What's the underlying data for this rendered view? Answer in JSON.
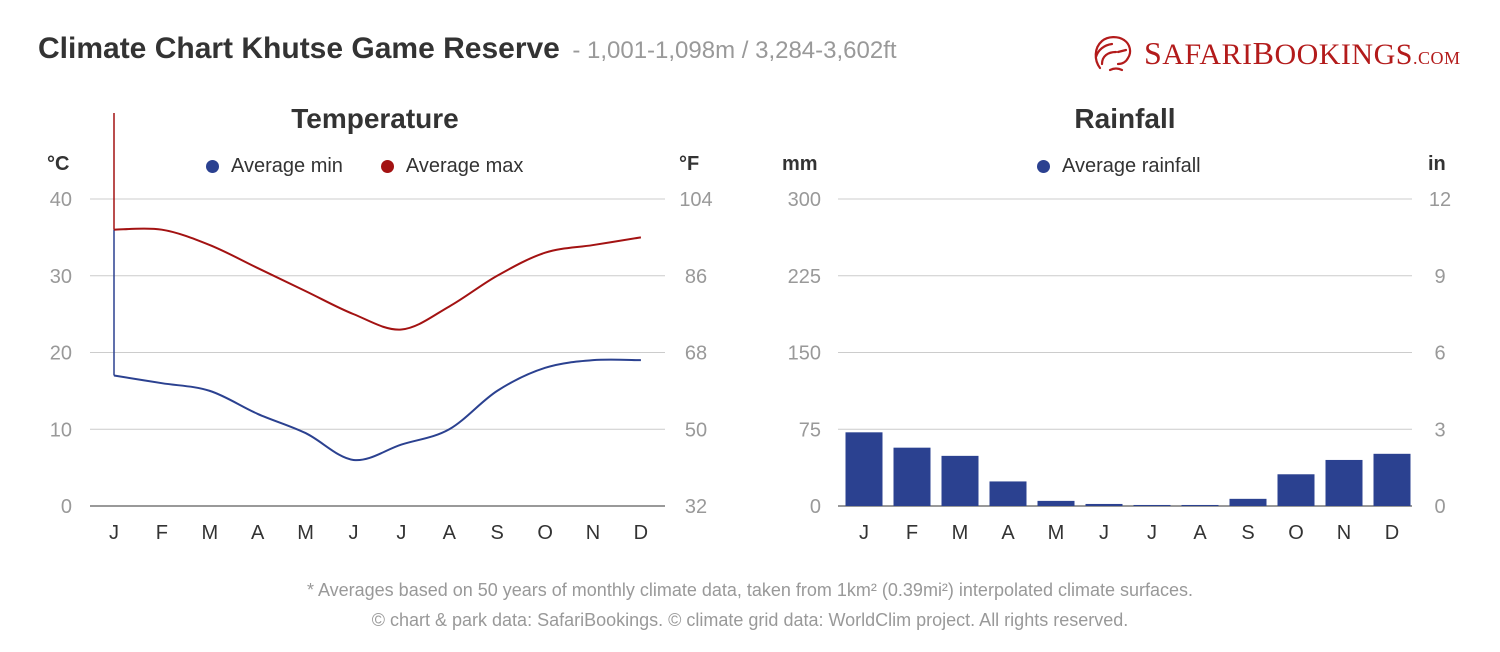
{
  "header": {
    "title": "Climate Chart Khutse Game Reserve",
    "subtitle": "- 1,001-1,098m / 3,284-3,602ft"
  },
  "logo": {
    "part1_big": "S",
    "part1": "AFARI",
    "part2_big": "B",
    "part2": "OOKINGS",
    "domain": ".COM"
  },
  "colors": {
    "min": "#2b4190",
    "max": "#a31212",
    "rain": "#2b4190",
    "grid": "#cccccc",
    "tick": "#999999"
  },
  "footer": {
    "line1": "* Averages based on 50 years of monthly climate data, taken from 1km² (0.39mi²) interpolated climate surfaces.",
    "line2": "© chart & park data: SafariBookings. © climate grid data: WorldClim project. All rights reserved."
  },
  "chart_data": [
    {
      "type": "line",
      "title": "Temperature",
      "ylabel": "°C",
      "ylabel_right": "°F",
      "categories": [
        "J",
        "F",
        "M",
        "A",
        "M",
        "J",
        "J",
        "A",
        "S",
        "O",
        "N",
        "D"
      ],
      "ylim": [
        0,
        40
      ],
      "yticks": [
        0,
        10,
        20,
        30,
        40
      ],
      "yticks_right": [
        32,
        50,
        68,
        86,
        104
      ],
      "legend_position": "top",
      "series": [
        {
          "name": "Average min",
          "values": [
            17,
            16,
            15,
            12,
            9.5,
            6,
            8,
            10,
            15,
            18,
            19,
            19
          ]
        },
        {
          "name": "Average max",
          "values": [
            36,
            36,
            34,
            31,
            28,
            25,
            23,
            26,
            30,
            33,
            34,
            35
          ]
        }
      ]
    },
    {
      "type": "bar",
      "title": "Rainfall",
      "ylabel": "mm",
      "ylabel_right": "in",
      "categories": [
        "J",
        "F",
        "M",
        "A",
        "M",
        "J",
        "J",
        "A",
        "S",
        "O",
        "N",
        "D"
      ],
      "ylim": [
        0,
        300
      ],
      "yticks": [
        0,
        75,
        150,
        225,
        300
      ],
      "yticks_right": [
        0,
        3,
        6,
        9,
        12
      ],
      "legend_position": "top",
      "series": [
        {
          "name": "Average rainfall",
          "values": [
            72,
            57,
            49,
            24,
            5,
            2,
            1,
            1,
            7,
            31,
            45,
            51
          ]
        }
      ]
    }
  ]
}
